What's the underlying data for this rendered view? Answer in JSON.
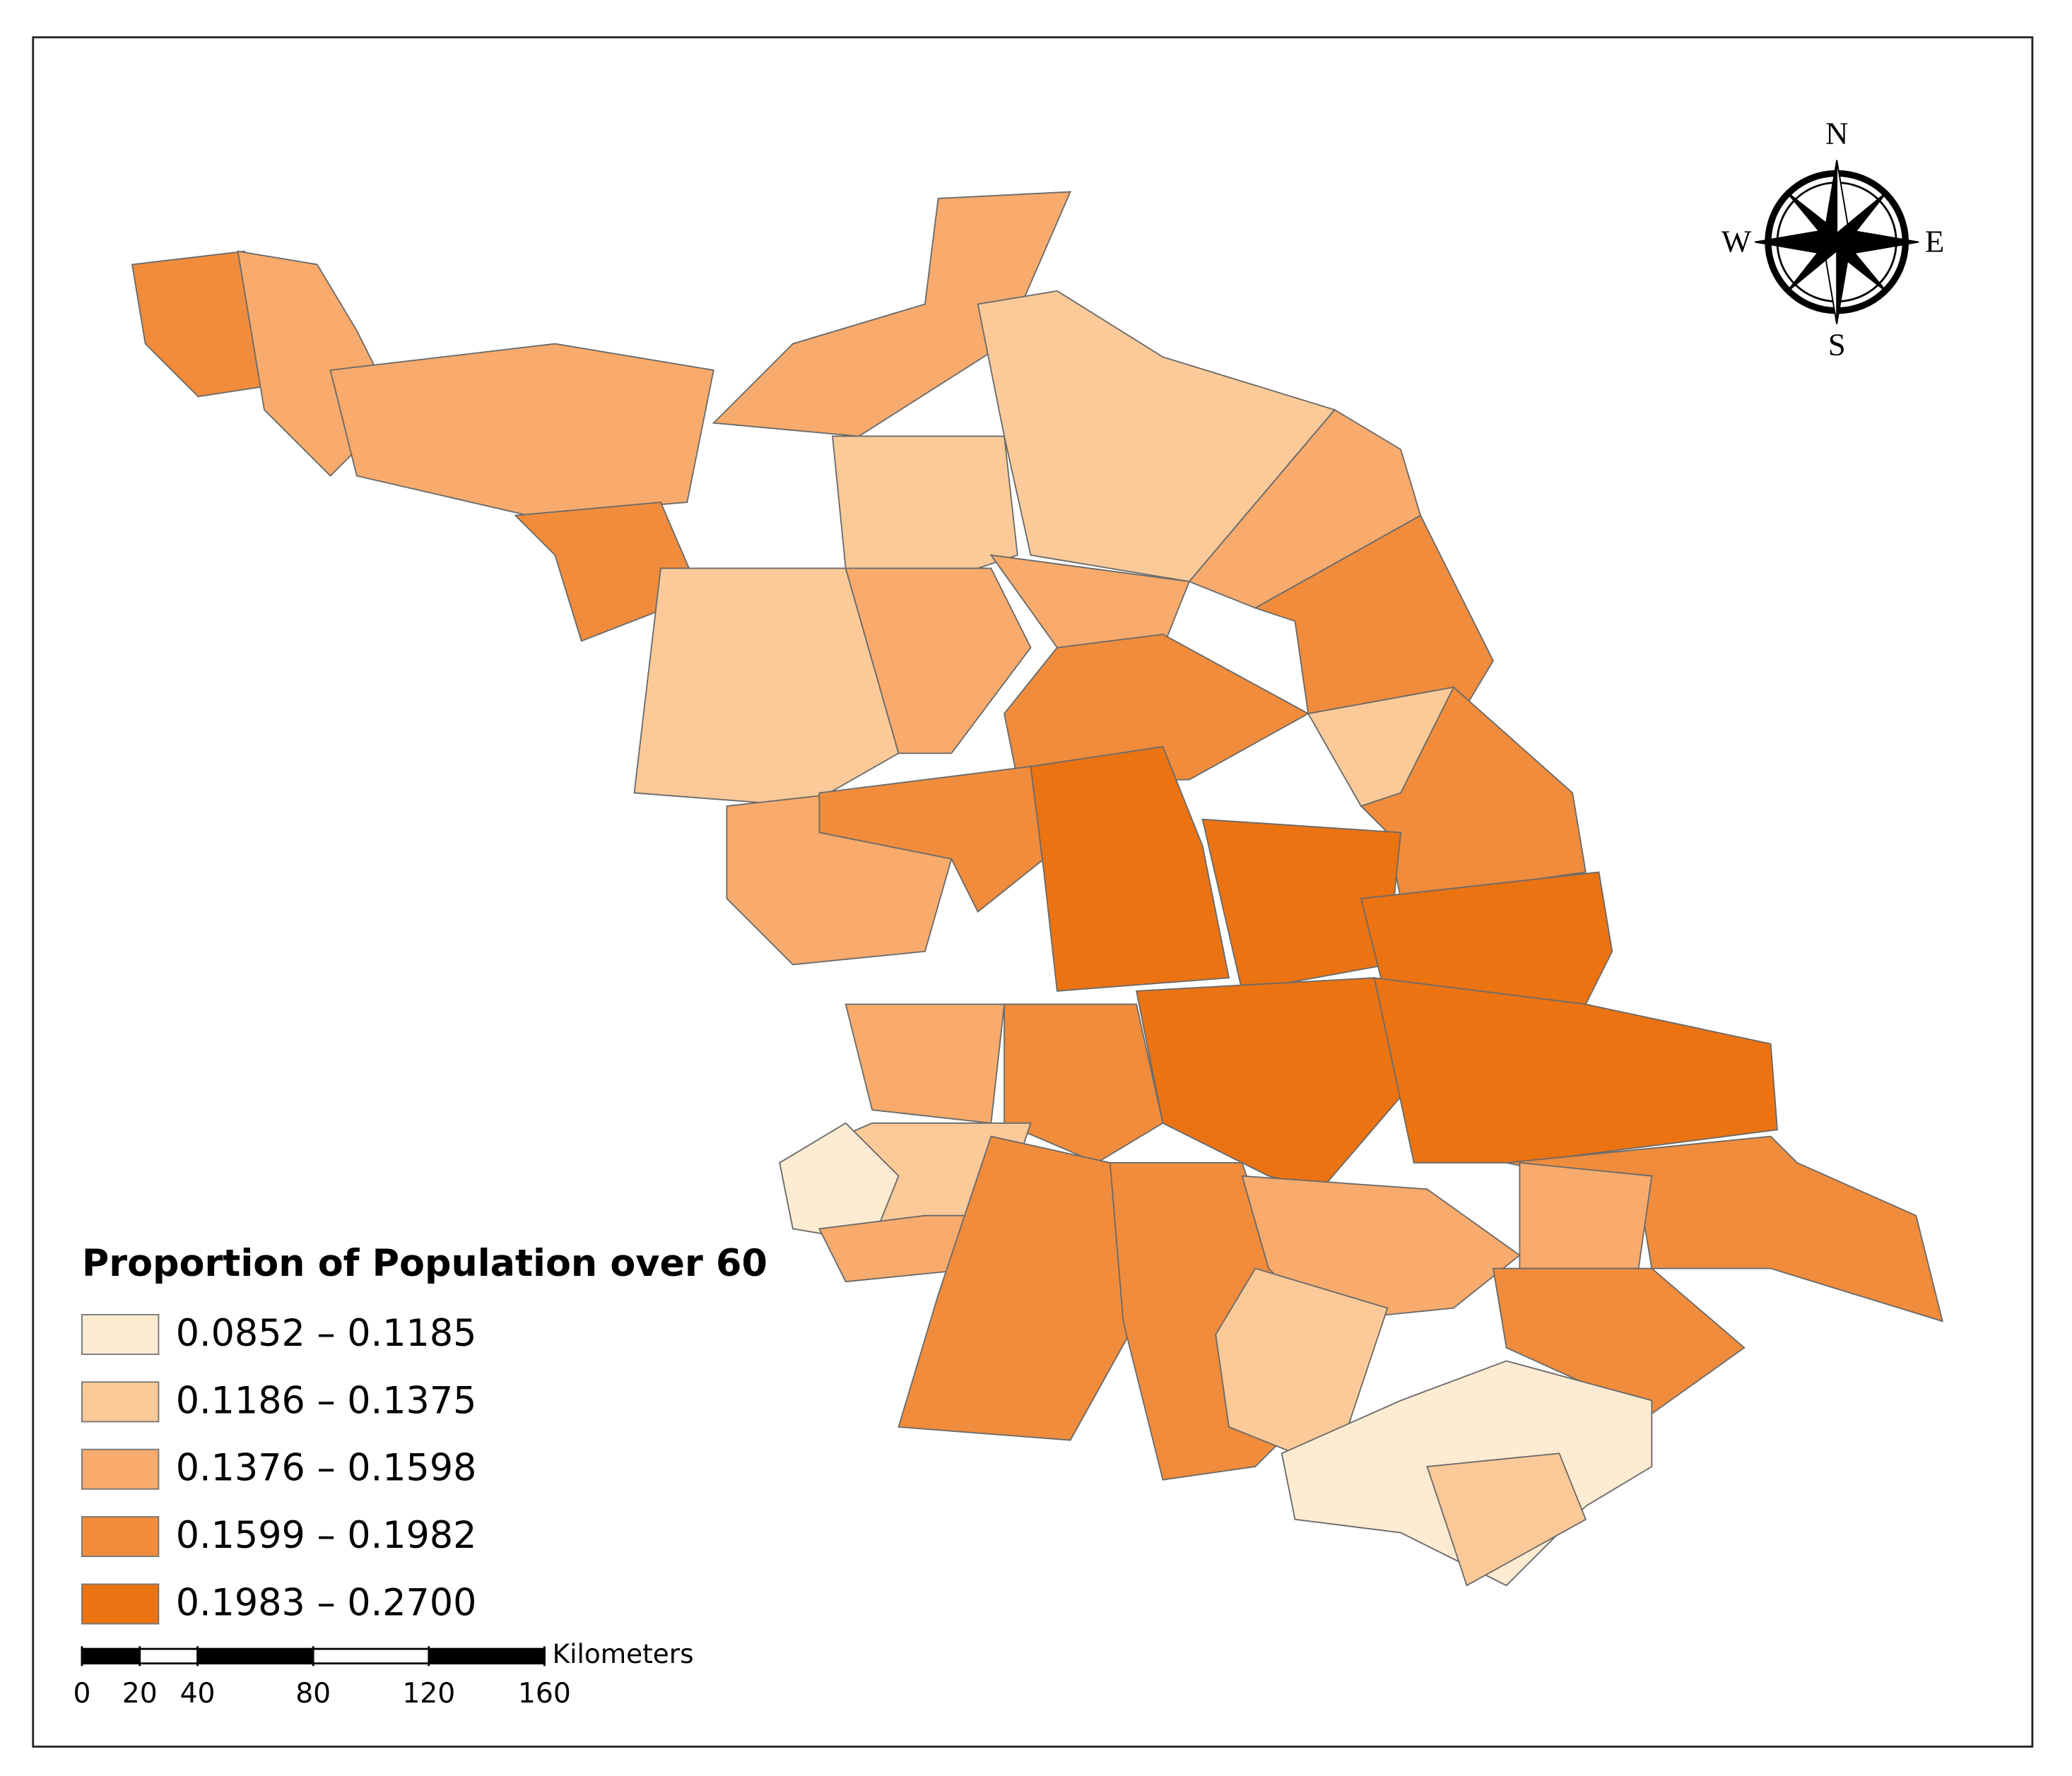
{
  "legend": {
    "title": "Proportion of Population over 60",
    "classes": [
      {
        "label": "0.0852 – 0.1185",
        "color": "#fdebd2"
      },
      {
        "label": "0.1186 – 0.1375",
        "color": "#fbca98"
      },
      {
        "label": "0.1376 – 0.1598",
        "color": "#f8ab6c"
      },
      {
        "label": "0.1599 – 0.1982",
        "color": "#f08c3c"
      },
      {
        "label": "0.1983 – 0.2700",
        "color": "#eb7312"
      }
    ]
  },
  "compass": {
    "n": "N",
    "e": "E",
    "s": "S",
    "w": "W"
  },
  "scale_bar": {
    "unit": "Kilometers",
    "ticks": [
      0,
      20,
      40,
      80,
      120,
      160
    ]
  }
}
